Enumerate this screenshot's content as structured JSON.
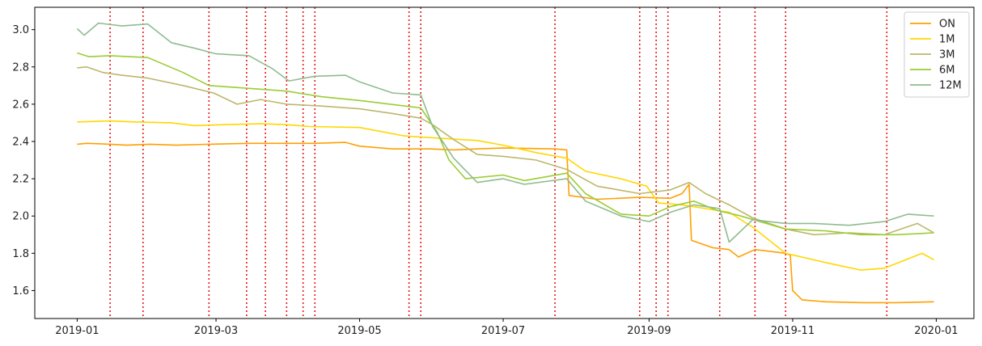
{
  "chart_data": {
    "type": "line",
    "title": "",
    "xlabel": "",
    "ylabel": "",
    "xlim": [
      "2018-12-14",
      "2020-01-17"
    ],
    "ylim": [
      1.45,
      3.12
    ],
    "grid": false,
    "legend_position": "top-right",
    "x_ticks": [
      {
        "date": "2019-01-01",
        "label": "2019-01"
      },
      {
        "date": "2019-03-01",
        "label": "2019-03"
      },
      {
        "date": "2019-05-01",
        "label": "2019-05"
      },
      {
        "date": "2019-07-01",
        "label": "2019-07"
      },
      {
        "date": "2019-09-01",
        "label": "2019-09"
      },
      {
        "date": "2019-11-01",
        "label": "2019-11"
      },
      {
        "date": "2020-01-01",
        "label": "2020-01"
      }
    ],
    "y_ticks": [
      {
        "value": 1.6,
        "label": "1.6"
      },
      {
        "value": 1.8,
        "label": "1.8"
      },
      {
        "value": 2.0,
        "label": "2.0"
      },
      {
        "value": 2.2,
        "label": "2.2"
      },
      {
        "value": 2.4,
        "label": "2.4"
      },
      {
        "value": 2.6,
        "label": "2.6"
      },
      {
        "value": 2.8,
        "label": "2.8"
      },
      {
        "value": 3.0,
        "label": "3.0"
      }
    ],
    "vlines": {
      "color": "#e41a1c",
      "style": "dotted",
      "dates": [
        "2019-01-15",
        "2019-01-29",
        "2019-02-26",
        "2019-03-14",
        "2019-03-22",
        "2019-03-31",
        "2019-04-07",
        "2019-04-12",
        "2019-05-22",
        "2019-05-27",
        "2019-07-23",
        "2019-08-28",
        "2019-09-04",
        "2019-09-09",
        "2019-10-01",
        "2019-10-16",
        "2019-10-29",
        "2019-12-11"
      ]
    },
    "series": [
      {
        "name": "ON",
        "color": "#ffa000",
        "points": [
          [
            "2019-01-01",
            2.385
          ],
          [
            "2019-01-05",
            2.39
          ],
          [
            "2019-01-15",
            2.385
          ],
          [
            "2019-01-22",
            2.38
          ],
          [
            "2019-02-01",
            2.385
          ],
          [
            "2019-02-12",
            2.38
          ],
          [
            "2019-02-26",
            2.385
          ],
          [
            "2019-03-15",
            2.39
          ],
          [
            "2019-03-31",
            2.39
          ],
          [
            "2019-04-12",
            2.39
          ],
          [
            "2019-04-25",
            2.395
          ],
          [
            "2019-05-01",
            2.375
          ],
          [
            "2019-05-15",
            2.36
          ],
          [
            "2019-05-31",
            2.36
          ],
          [
            "2019-06-10",
            2.355
          ],
          [
            "2019-06-20",
            2.36
          ],
          [
            "2019-07-01",
            2.365
          ],
          [
            "2019-07-23",
            2.36
          ],
          [
            "2019-07-28",
            2.355
          ],
          [
            "2019-07-29",
            2.11
          ],
          [
            "2019-08-10",
            2.09
          ],
          [
            "2019-08-28",
            2.1
          ],
          [
            "2019-09-10",
            2.095
          ],
          [
            "2019-09-15",
            2.12
          ],
          [
            "2019-09-18",
            2.17
          ],
          [
            "2019-09-19",
            1.87
          ],
          [
            "2019-09-28",
            1.83
          ],
          [
            "2019-10-05",
            1.82
          ],
          [
            "2019-10-09",
            1.78
          ],
          [
            "2019-10-16",
            1.82
          ],
          [
            "2019-10-29",
            1.8
          ],
          [
            "2019-10-31",
            1.79
          ],
          [
            "2019-11-01",
            1.6
          ],
          [
            "2019-11-05",
            1.55
          ],
          [
            "2019-11-15",
            1.54
          ],
          [
            "2019-12-01",
            1.535
          ],
          [
            "2019-12-15",
            1.535
          ],
          [
            "2019-12-31",
            1.54
          ]
        ]
      },
      {
        "name": "1M",
        "color": "#ffd700",
        "points": [
          [
            "2019-01-01",
            2.505
          ],
          [
            "2019-01-15",
            2.51
          ],
          [
            "2019-01-25",
            2.505
          ],
          [
            "2019-02-10",
            2.5
          ],
          [
            "2019-02-20",
            2.485
          ],
          [
            "2019-03-05",
            2.49
          ],
          [
            "2019-03-20",
            2.495
          ],
          [
            "2019-03-31",
            2.49
          ],
          [
            "2019-04-10",
            2.48
          ],
          [
            "2019-05-01",
            2.475
          ],
          [
            "2019-05-20",
            2.43
          ],
          [
            "2019-06-01",
            2.42
          ],
          [
            "2019-06-20",
            2.405
          ],
          [
            "2019-07-01",
            2.38
          ],
          [
            "2019-07-15",
            2.34
          ],
          [
            "2019-07-28",
            2.31
          ],
          [
            "2019-08-05",
            2.24
          ],
          [
            "2019-08-20",
            2.2
          ],
          [
            "2019-08-31",
            2.16
          ],
          [
            "2019-09-05",
            2.07
          ],
          [
            "2019-09-15",
            2.06
          ],
          [
            "2019-09-25",
            2.04
          ],
          [
            "2019-10-05",
            2.02
          ],
          [
            "2019-10-15",
            1.94
          ],
          [
            "2019-10-29",
            1.8
          ],
          [
            "2019-11-15",
            1.75
          ],
          [
            "2019-11-30",
            1.71
          ],
          [
            "2019-12-10",
            1.72
          ],
          [
            "2019-12-20",
            1.77
          ],
          [
            "2019-12-26",
            1.8
          ],
          [
            "2019-12-31",
            1.765
          ]
        ]
      },
      {
        "name": "3M",
        "color": "#bdb76b",
        "points": [
          [
            "2019-01-01",
            2.795
          ],
          [
            "2019-01-05",
            2.8
          ],
          [
            "2019-01-12",
            2.77
          ],
          [
            "2019-01-20",
            2.755
          ],
          [
            "2019-01-31",
            2.74
          ],
          [
            "2019-02-15",
            2.7
          ],
          [
            "2019-02-28",
            2.66
          ],
          [
            "2019-03-10",
            2.6
          ],
          [
            "2019-03-20",
            2.625
          ],
          [
            "2019-03-31",
            2.6
          ],
          [
            "2019-04-15",
            2.59
          ],
          [
            "2019-05-01",
            2.575
          ],
          [
            "2019-05-15",
            2.55
          ],
          [
            "2019-05-27",
            2.525
          ],
          [
            "2019-06-01",
            2.49
          ],
          [
            "2019-06-10",
            2.41
          ],
          [
            "2019-06-20",
            2.33
          ],
          [
            "2019-07-01",
            2.32
          ],
          [
            "2019-07-15",
            2.3
          ],
          [
            "2019-07-28",
            2.25
          ],
          [
            "2019-08-10",
            2.16
          ],
          [
            "2019-08-28",
            2.12
          ],
          [
            "2019-09-10",
            2.14
          ],
          [
            "2019-09-18",
            2.18
          ],
          [
            "2019-09-25",
            2.12
          ],
          [
            "2019-10-05",
            2.06
          ],
          [
            "2019-10-15",
            1.99
          ],
          [
            "2019-10-29",
            1.93
          ],
          [
            "2019-11-10",
            1.9
          ],
          [
            "2019-11-25",
            1.91
          ],
          [
            "2019-12-10",
            1.9
          ],
          [
            "2019-12-24",
            1.96
          ],
          [
            "2019-12-31",
            1.91
          ]
        ]
      },
      {
        "name": "6M",
        "color": "#9acd32",
        "points": [
          [
            "2019-01-01",
            2.875
          ],
          [
            "2019-01-06",
            2.855
          ],
          [
            "2019-01-15",
            2.86
          ],
          [
            "2019-01-31",
            2.85
          ],
          [
            "2019-02-15",
            2.77
          ],
          [
            "2019-02-26",
            2.7
          ],
          [
            "2019-03-15",
            2.685
          ],
          [
            "2019-03-31",
            2.67
          ],
          [
            "2019-04-15",
            2.64
          ],
          [
            "2019-05-01",
            2.62
          ],
          [
            "2019-05-27",
            2.58
          ],
          [
            "2019-06-03",
            2.45
          ],
          [
            "2019-06-08",
            2.3
          ],
          [
            "2019-06-15",
            2.2
          ],
          [
            "2019-07-01",
            2.22
          ],
          [
            "2019-07-10",
            2.19
          ],
          [
            "2019-07-28",
            2.23
          ],
          [
            "2019-08-05",
            2.12
          ],
          [
            "2019-08-20",
            2.01
          ],
          [
            "2019-09-01",
            2.0
          ],
          [
            "2019-09-10",
            2.05
          ],
          [
            "2019-09-20",
            2.08
          ],
          [
            "2019-09-30",
            2.03
          ],
          [
            "2019-10-10",
            2.0
          ],
          [
            "2019-10-29",
            1.93
          ],
          [
            "2019-11-15",
            1.92
          ],
          [
            "2019-11-30",
            1.9
          ],
          [
            "2019-12-15",
            1.9
          ],
          [
            "2019-12-31",
            1.91
          ]
        ]
      },
      {
        "name": "12M",
        "color": "#8fbc8f",
        "points": [
          [
            "2019-01-01",
            3.005
          ],
          [
            "2019-01-04",
            2.97
          ],
          [
            "2019-01-10",
            3.035
          ],
          [
            "2019-01-20",
            3.02
          ],
          [
            "2019-01-31",
            3.03
          ],
          [
            "2019-02-10",
            2.93
          ],
          [
            "2019-02-20",
            2.9
          ],
          [
            "2019-03-01",
            2.87
          ],
          [
            "2019-03-15",
            2.86
          ],
          [
            "2019-03-25",
            2.79
          ],
          [
            "2019-04-01",
            2.725
          ],
          [
            "2019-04-12",
            2.75
          ],
          [
            "2019-04-25",
            2.755
          ],
          [
            "2019-05-01",
            2.72
          ],
          [
            "2019-05-15",
            2.66
          ],
          [
            "2019-05-27",
            2.65
          ],
          [
            "2019-06-01",
            2.48
          ],
          [
            "2019-06-10",
            2.31
          ],
          [
            "2019-06-20",
            2.18
          ],
          [
            "2019-07-01",
            2.2
          ],
          [
            "2019-07-10",
            2.17
          ],
          [
            "2019-07-28",
            2.2
          ],
          [
            "2019-08-05",
            2.08
          ],
          [
            "2019-08-20",
            2.0
          ],
          [
            "2019-09-01",
            1.97
          ],
          [
            "2019-09-10",
            2.02
          ],
          [
            "2019-09-20",
            2.06
          ],
          [
            "2019-10-01",
            2.04
          ],
          [
            "2019-10-05",
            1.86
          ],
          [
            "2019-10-15",
            1.98
          ],
          [
            "2019-10-29",
            1.96
          ],
          [
            "2019-11-10",
            1.96
          ],
          [
            "2019-11-25",
            1.95
          ],
          [
            "2019-12-10",
            1.97
          ],
          [
            "2019-12-20",
            2.01
          ],
          [
            "2019-12-31",
            2.0
          ]
        ]
      }
    ]
  }
}
